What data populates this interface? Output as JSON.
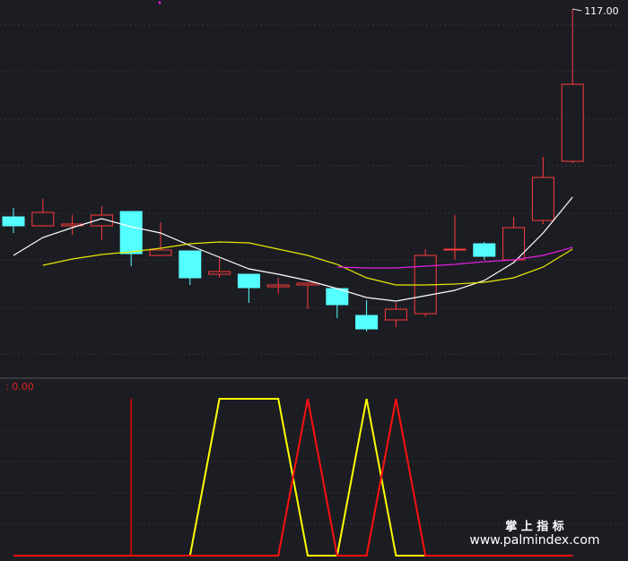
{
  "chart_data": [
    {
      "type": "candlestick",
      "up_color": "#ff3a3a",
      "down_color": "#54ffff",
      "open": [
        93.8,
        92.8,
        92.8,
        92.8,
        94.4,
        89.5,
        90.0,
        87.4,
        87.4,
        86.0,
        86.2,
        85.8,
        82.8,
        82.3,
        83.0,
        90.2,
        90.8,
        89.0,
        93.4,
        100.0
      ],
      "high": [
        94.8,
        95.8,
        94.0,
        95.0,
        94.4,
        93.2,
        90.0,
        89.2,
        87.4,
        87.0,
        86.4,
        85.8,
        84.5,
        84.2,
        90.2,
        94.0,
        91.0,
        93.8,
        100.5,
        117.0
      ],
      "low": [
        92.0,
        92.7,
        91.8,
        91.2,
        88.3,
        89.5,
        86.2,
        87.0,
        84.2,
        85.2,
        83.5,
        82.5,
        81.0,
        81.5,
        82.7,
        89.0,
        89.0,
        88.8,
        93.0,
        99.8
      ],
      "close": [
        92.8,
        94.3,
        93.0,
        94.0,
        89.7,
        90.1,
        87.0,
        87.7,
        85.9,
        86.2,
        86.4,
        84.0,
        81.3,
        83.5,
        89.5,
        90.2,
        89.4,
        92.6,
        98.2,
        108.6
      ],
      "lines": [
        {
          "color": "#ffffff",
          "values": [
            89.5,
            91.5,
            92.6,
            93.6,
            92.7,
            92.0,
            90.6,
            89.3,
            88.0,
            87.4,
            86.7,
            85.8,
            84.8,
            84.4,
            85.0,
            85.6,
            86.7,
            88.7,
            92.0,
            96.0
          ]
        },
        {
          "color": "#e8e800",
          "values": [
            null,
            88.4,
            89.1,
            89.6,
            89.9,
            90.3,
            90.8,
            91.0,
            90.9,
            90.2,
            89.5,
            88.5,
            87.0,
            86.2,
            86.2,
            86.3,
            86.5,
            87.0,
            88.2,
            90.2
          ]
        },
        {
          "color": "#e020e0",
          "values": [
            null,
            null,
            null,
            null,
            null,
            null,
            null,
            null,
            null,
            null,
            null,
            88.2,
            88.1,
            88.1,
            88.3,
            88.5,
            88.8,
            89.0,
            89.5,
            90.4
          ]
        }
      ],
      "ylim": [
        76,
        118
      ],
      "max_annotation": {
        "value": 117,
        "label": "117.00"
      }
    },
    {
      "type": "line",
      "label": ": 0.00",
      "ylim": [
        0,
        1
      ],
      "series": [
        {
          "color": "#e00000",
          "style": "stick",
          "values": [
            0,
            0,
            0,
            0,
            1,
            0,
            0,
            0,
            0,
            0,
            0,
            0,
            0,
            0,
            0,
            0,
            0,
            0,
            0,
            0
          ]
        },
        {
          "color": "#ffff00",
          "values": [
            0,
            0,
            0,
            0,
            0,
            0,
            0,
            1,
            1,
            1,
            0,
            0,
            1,
            0,
            0,
            0,
            0,
            0,
            0,
            0
          ]
        },
        {
          "color": "#ff1010",
          "values": [
            0,
            0,
            0,
            0,
            0,
            0,
            0,
            0,
            0,
            0,
            1,
            0,
            0,
            1,
            0,
            0,
            0,
            0,
            0,
            0
          ]
        }
      ]
    }
  ],
  "watermark": {
    "title": "掌 上 指 标",
    "url": "www.palmindex.com"
  }
}
